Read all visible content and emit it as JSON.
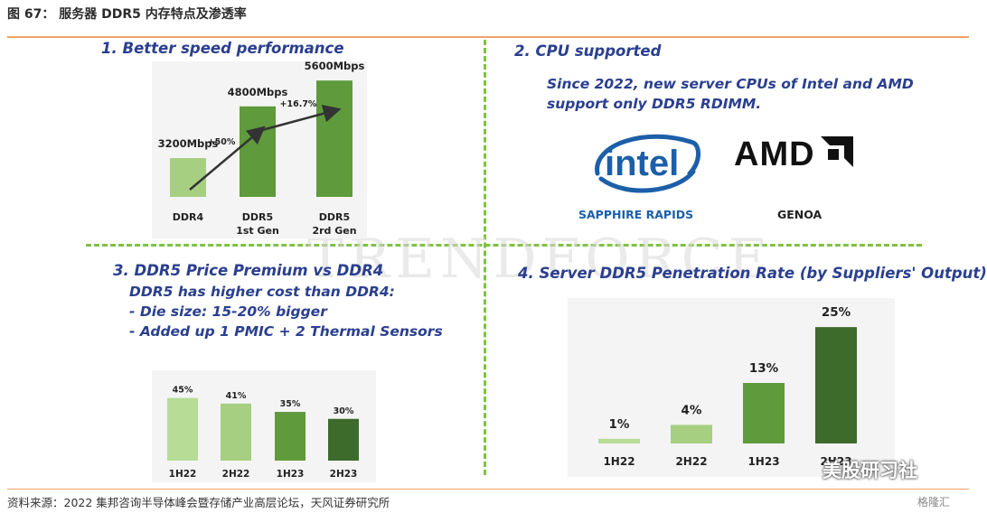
{
  "figure": {
    "title": "图 67：   服务器 DDR5 内存特点及渗透率",
    "source": "资料来源：2022 集邦咨询半导体峰会暨存储产业高层论坛，天风证券研究所",
    "watermark": "TRENDFORCE",
    "brand_text": "美股研习社",
    "brand_text2": "格隆汇"
  },
  "panel1": {
    "title": "1. Better speed performance"
  },
  "panel2": {
    "title": "2. CPU supported",
    "lines": [
      "Since 2022, new server CPUs of Intel and AMD",
      "support only DDR5 RDIMM."
    ],
    "intel_logo": "intel",
    "intel_caption": "SAPPHIRE RAPIDS",
    "amd_logo": "AMD",
    "amd_caption": "GENOA"
  },
  "panel3": {
    "title": "3. DDR5 Price Premium vs DDR4",
    "lines": [
      "DDR5 has higher cost than DDR4:",
      "- Die size: 15-20% bigger",
      "- Added up 1 PMIC + 2 Thermal Sensors"
    ]
  },
  "panel4": {
    "title": "4. Server DDR5 Penetration Rate (by Suppliers' Output)"
  },
  "colors": {
    "light": "#a6cf82",
    "mid": "#5f9a3c",
    "dark": "#3d6b2c",
    "blue": "#2a3f8f"
  },
  "chart_data": [
    {
      "type": "bar",
      "title": "1. Better speed performance",
      "categories": [
        [
          "DDR4"
        ],
        [
          "DDR5",
          "1st Gen"
        ],
        [
          "DDR5",
          "2rd Gen"
        ]
      ],
      "values": [
        3200,
        4800,
        5600
      ],
      "value_labels": [
        "3200Mbps",
        "4800Mbps",
        "5600Mbps"
      ],
      "ylim": [
        2000,
        5800
      ],
      "annotations": [
        "+50%",
        "+16.7%"
      ]
    },
    {
      "type": "bar",
      "title": "3. DDR5 Price Premium vs DDR4",
      "categories": [
        "1H22",
        "2H22",
        "1H23",
        "2H23"
      ],
      "values": [
        45,
        41,
        35,
        30
      ],
      "value_labels": [
        "45%",
        "41%",
        "35%",
        "30%"
      ],
      "ylim": [
        0,
        48
      ]
    },
    {
      "type": "bar",
      "title": "4. Server DDR5 Penetration Rate (by Suppliers' Output)",
      "categories": [
        "1H22",
        "2H22",
        "1H23",
        "2H23"
      ],
      "values": [
        1,
        4,
        13,
        25
      ],
      "value_labels": [
        "1%",
        "4%",
        "13%",
        "25%"
      ],
      "ylim": [
        0,
        26
      ]
    }
  ]
}
